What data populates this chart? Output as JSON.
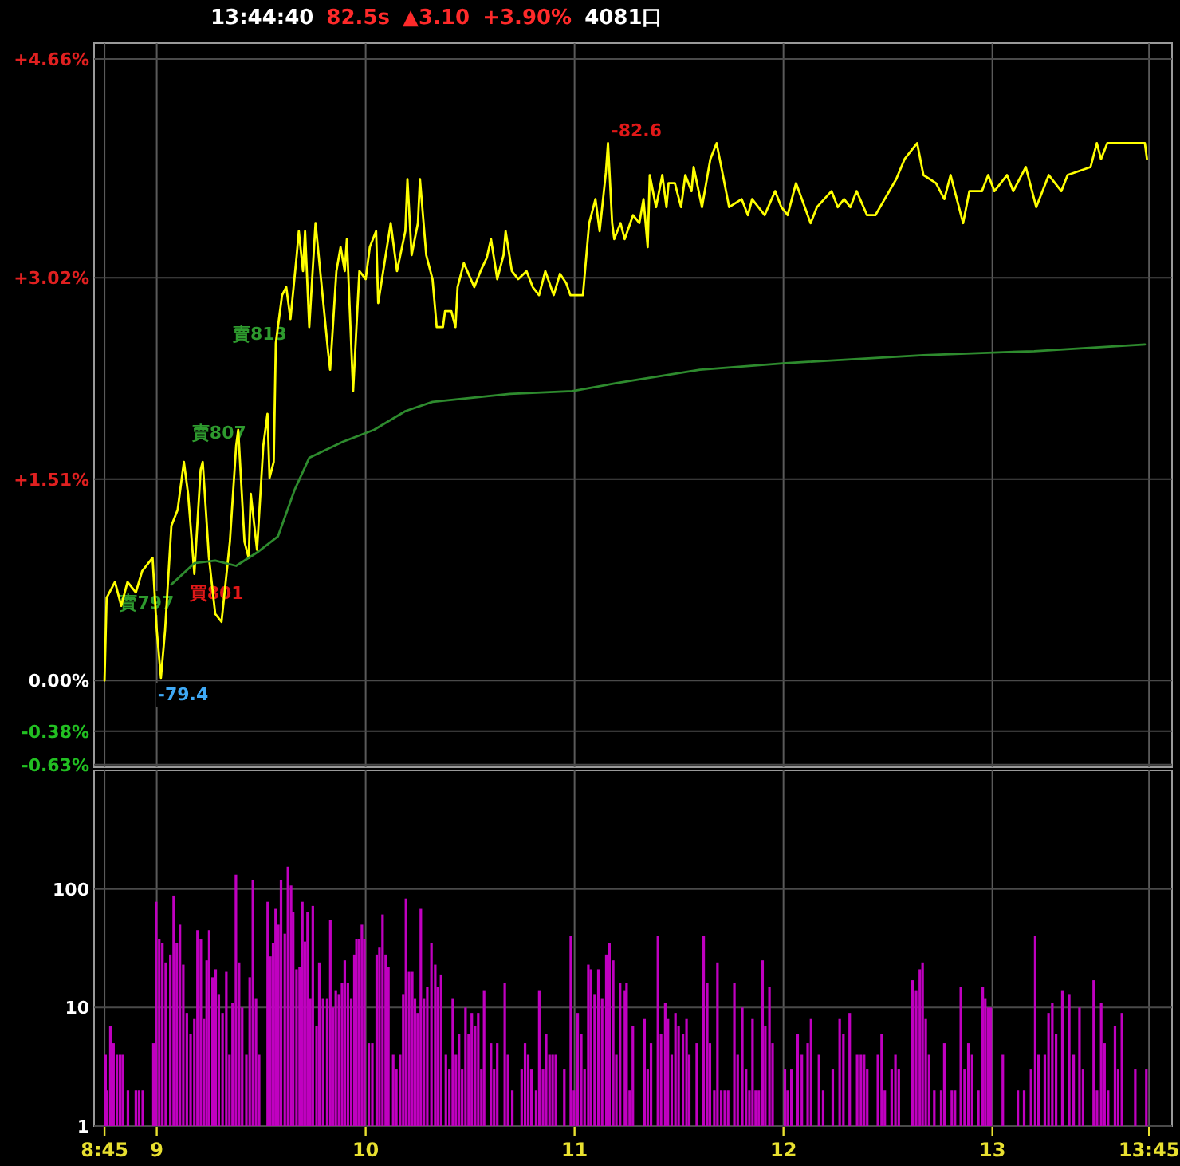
{
  "chart_data": [
    {
      "type": "line",
      "annotations": [
        "13:44:40",
        "82.5s",
        "▲3.10",
        "+3.90%",
        "4081口",
        {
          "text": "-82.6",
          "x": 11.16,
          "y": 4.03
        },
        {
          "text": "-79.4",
          "x": 9.02,
          "y": 0.02
        },
        {
          "text": "賣797",
          "x": 9.06,
          "y": 0.42
        },
        {
          "text": "賣807",
          "x": 9.39,
          "y": 1.67
        },
        {
          "text": "賣813",
          "x": 9.6,
          "y": 2.45
        },
        {
          "text": "買801",
          "x": 9.18,
          "y": 0.85
        }
      ],
      "xlim": [
        8.7,
        13.86
      ],
      "xticks": [
        {
          "value": 8.75,
          "label": null
        },
        {
          "value": 9,
          "label": null
        },
        {
          "value": 10,
          "label": null
        },
        {
          "value": 11,
          "label": null
        },
        {
          "value": 12,
          "label": null
        },
        {
          "value": 13,
          "label": null
        },
        {
          "value": 13.75,
          "label": null
        }
      ],
      "ylim": [
        -0.65,
        4.78
      ],
      "yticks": [
        {
          "value": 4.66,
          "label": "+4.66%"
        },
        {
          "value": 3.02,
          "label": "+3.02%"
        },
        {
          "value": 1.51,
          "label": "+1.51%"
        },
        {
          "value": 0,
          "label": "0.00%"
        },
        {
          "value": -0.38,
          "label": "-0.38%"
        },
        {
          "value": -0.63,
          "label": "-0.63%"
        }
      ],
      "tick_labels": "y",
      "grid": true,
      "series": [
        {
          "color": "#ffff00",
          "x": [
            8.75,
            8.76,
            8.8,
            8.83,
            8.86,
            8.9,
            8.93,
            8.98,
            9.0,
            9.02,
            9.04,
            9.07,
            9.1,
            9.13,
            9.15,
            9.18,
            9.21,
            9.22,
            9.25,
            9.28,
            9.31,
            9.35,
            9.38,
            9.39,
            9.42,
            9.44,
            9.45,
            9.48,
            9.51,
            9.53,
            9.54,
            9.56,
            9.57,
            9.6,
            9.62,
            9.64,
            9.67,
            9.68,
            9.7,
            9.71,
            9.73,
            9.76,
            9.79,
            9.82,
            9.83,
            9.86,
            9.88,
            9.9,
            9.91,
            9.94,
            9.97,
            10.0,
            10.02,
            10.05,
            10.06,
            10.09,
            10.12,
            10.15,
            10.19,
            10.2,
            10.22,
            10.25,
            10.26,
            10.29,
            10.32,
            10.34,
            10.37,
            10.38,
            10.41,
            10.43,
            10.44,
            10.47,
            10.52,
            10.55,
            10.58,
            10.6,
            10.63,
            10.66,
            10.67,
            10.7,
            10.73,
            10.77,
            10.8,
            10.83,
            10.86,
            10.9,
            10.93,
            10.96,
            10.98,
            11.04,
            11.07,
            11.1,
            11.12,
            11.15,
            11.16,
            11.18,
            11.19,
            11.22,
            11.24,
            11.28,
            11.31,
            11.33,
            11.35,
            11.36,
            11.39,
            11.42,
            11.44,
            11.45,
            11.48,
            11.51,
            11.53,
            11.56,
            11.57,
            11.61,
            11.65,
            11.68,
            11.71,
            11.74,
            11.8,
            11.83,
            11.85,
            11.91,
            11.96,
            11.99,
            12.02,
            12.06,
            12.13,
            12.16,
            12.23,
            12.26,
            12.29,
            12.32,
            12.35,
            12.4,
            12.44,
            12.54,
            12.58,
            12.64,
            12.67,
            12.73,
            12.77,
            12.8,
            12.86,
            12.89,
            12.95,
            12.98,
            13.01,
            13.07,
            13.1,
            13.16,
            13.21,
            13.27,
            13.33,
            13.36,
            13.47,
            13.5,
            13.52,
            13.55,
            13.73,
            13.74
          ],
          "values": [
            0.0,
            0.62,
            0.74,
            0.56,
            0.74,
            0.66,
            0.82,
            0.92,
            0.38,
            0.02,
            0.38,
            1.16,
            1.28,
            1.64,
            1.4,
            0.8,
            1.58,
            1.64,
            0.92,
            0.5,
            0.44,
            1.04,
            1.76,
            1.88,
            1.04,
            0.92,
            1.4,
            0.98,
            1.76,
            2.0,
            1.52,
            1.64,
            2.53,
            2.89,
            2.95,
            2.71,
            3.19,
            3.37,
            3.07,
            3.37,
            2.65,
            3.43,
            2.95,
            2.47,
            2.33,
            3.07,
            3.25,
            3.07,
            3.31,
            2.17,
            3.07,
            3.01,
            3.25,
            3.37,
            2.83,
            3.13,
            3.43,
            3.07,
            3.37,
            3.76,
            3.19,
            3.43,
            3.76,
            3.19,
            3.01,
            2.65,
            2.65,
            2.77,
            2.77,
            2.65,
            2.95,
            3.13,
            2.95,
            3.07,
            3.17,
            3.31,
            3.01,
            3.19,
            3.37,
            3.07,
            3.01,
            3.07,
            2.95,
            2.89,
            3.07,
            2.89,
            3.05,
            2.98,
            2.89,
            2.89,
            3.43,
            3.61,
            3.37,
            3.81,
            4.03,
            3.43,
            3.31,
            3.43,
            3.31,
            3.49,
            3.43,
            3.61,
            3.25,
            3.79,
            3.55,
            3.79,
            3.55,
            3.73,
            3.73,
            3.55,
            3.79,
            3.67,
            3.85,
            3.55,
            3.91,
            4.03,
            3.79,
            3.55,
            3.61,
            3.49,
            3.61,
            3.49,
            3.67,
            3.55,
            3.49,
            3.73,
            3.43,
            3.55,
            3.67,
            3.55,
            3.61,
            3.55,
            3.67,
            3.49,
            3.49,
            3.76,
            3.91,
            4.03,
            3.79,
            3.73,
            3.61,
            3.79,
            3.43,
            3.67,
            3.67,
            3.79,
            3.67,
            3.79,
            3.67,
            3.85,
            3.55,
            3.79,
            3.67,
            3.79,
            3.85,
            4.03,
            3.91,
            4.03,
            4.03,
            3.91
          ]
        },
        {
          "color": "#2e8b2e",
          "x": [
            9.07,
            9.18,
            9.28,
            9.38,
            9.48,
            9.58,
            9.66,
            9.73,
            9.89,
            10.04,
            10.19,
            10.32,
            10.69,
            10.99,
            11.2,
            11.6,
            12.01,
            12.67,
            13.2,
            13.73
          ],
          "values": [
            0.72,
            0.88,
            0.9,
            0.86,
            0.96,
            1.08,
            1.43,
            1.67,
            1.79,
            1.88,
            2.02,
            2.09,
            2.15,
            2.17,
            2.23,
            2.33,
            2.38,
            2.44,
            2.47,
            2.52
          ]
        }
      ]
    },
    {
      "type": "bar",
      "color": "#c000c0",
      "log": true,
      "ylim": [
        1,
        1000
      ],
      "yticks": [
        1,
        10,
        100
      ],
      "grid": true,
      "xlim": [
        8.7,
        13.86
      ],
      "xticks": [
        {
          "value": 8.75,
          "label": "8:45"
        },
        9,
        10,
        11,
        12,
        13,
        {
          "value": 13.75,
          "label": "13:45"
        }
      ],
      "x": [
        8.755,
        8.763,
        8.778,
        8.793,
        8.809,
        8.824,
        8.837,
        8.862,
        8.9,
        8.915,
        8.933,
        8.984,
        8.997,
        9.012,
        9.027,
        9.043,
        9.065,
        9.081,
        9.096,
        9.111,
        9.127,
        9.144,
        9.162,
        9.18,
        9.195,
        9.211,
        9.226,
        9.239,
        9.251,
        9.267,
        9.282,
        9.297,
        9.315,
        9.333,
        9.348,
        9.363,
        9.379,
        9.394,
        9.409,
        9.429,
        9.445,
        9.46,
        9.475,
        9.49,
        9.531,
        9.544,
        9.557,
        9.569,
        9.582,
        9.595,
        9.613,
        9.628,
        9.643,
        9.653,
        9.669,
        9.684,
        9.697,
        9.709,
        9.722,
        9.735,
        9.747,
        9.765,
        9.778,
        9.796,
        9.816,
        9.831,
        9.844,
        9.857,
        9.872,
        9.887,
        9.9,
        9.915,
        9.931,
        9.946,
        9.956,
        9.969,
        9.982,
        9.994,
        10.015,
        10.032,
        10.053,
        10.066,
        10.081,
        10.096,
        10.109,
        10.132,
        10.147,
        10.165,
        10.18,
        10.193,
        10.208,
        10.223,
        10.236,
        10.249,
        10.264,
        10.279,
        10.295,
        10.315,
        10.333,
        10.345,
        10.361,
        10.384,
        10.401,
        10.417,
        10.432,
        10.447,
        10.462,
        10.478,
        10.493,
        10.508,
        10.524,
        10.539,
        10.554,
        10.567,
        10.6,
        10.615,
        10.63,
        10.666,
        10.681,
        10.702,
        10.747,
        10.763,
        10.778,
        10.793,
        10.816,
        10.831,
        10.849,
        10.864,
        10.88,
        10.895,
        10.91,
        10.951,
        10.982,
        10.997,
        11.015,
        11.032,
        11.048,
        11.066,
        11.078,
        11.096,
        11.114,
        11.132,
        11.152,
        11.167,
        11.185,
        11.2,
        11.218,
        11.241,
        11.249,
        11.264,
        11.279,
        11.335,
        11.35,
        11.366,
        11.399,
        11.414,
        11.434,
        11.447,
        11.465,
        11.483,
        11.498,
        11.519,
        11.536,
        11.549,
        11.585,
        11.618,
        11.635,
        11.648,
        11.669,
        11.684,
        11.702,
        11.719,
        11.735,
        11.765,
        11.781,
        11.803,
        11.821,
        11.837,
        11.852,
        11.867,
        11.882,
        11.9,
        11.913,
        11.933,
        11.948,
        12.007,
        12.02,
        12.038,
        12.068,
        12.088,
        12.116,
        12.132,
        12.17,
        12.19,
        12.236,
        12.269,
        12.287,
        12.317,
        12.353,
        12.371,
        12.386,
        12.401,
        12.452,
        12.47,
        12.485,
        12.518,
        12.536,
        12.552,
        12.618,
        12.635,
        12.653,
        12.666,
        12.681,
        12.697,
        12.722,
        12.755,
        12.77,
        12.806,
        12.821,
        12.849,
        12.867,
        12.885,
        12.903,
        12.933,
        12.954,
        12.966,
        12.979,
        12.992,
        13.05,
        13.122,
        13.152,
        13.185,
        13.205,
        13.221,
        13.251,
        13.269,
        13.287,
        13.305,
        13.335,
        13.368,
        13.389,
        13.417,
        13.434,
        13.485,
        13.501,
        13.521,
        13.537,
        13.554,
        13.587,
        13.602,
        13.62,
        13.684,
        13.737
      ],
      "values": [
        4,
        2,
        7,
        5,
        4,
        4,
        4,
        2,
        2,
        2,
        2,
        5,
        78,
        38,
        35,
        24,
        28,
        88,
        35,
        50,
        23,
        9,
        6,
        8,
        45,
        38,
        8,
        25,
        45,
        18,
        21,
        13,
        9,
        20,
        4,
        11,
        132,
        24,
        10,
        4,
        18,
        118,
        12,
        4,
        78,
        27,
        35,
        68,
        50,
        118,
        42,
        154,
        107,
        64,
        21,
        22,
        78,
        36,
        64,
        12,
        72,
        7,
        24,
        12,
        12,
        55,
        10,
        14,
        13,
        16,
        25,
        16,
        12,
        28,
        38,
        38,
        50,
        38,
        5,
        5,
        28,
        32,
        61,
        28,
        22,
        4,
        3,
        4,
        13,
        83,
        20,
        20,
        12,
        9,
        68,
        12,
        15,
        35,
        23,
        15,
        19,
        4,
        3,
        12,
        4,
        6,
        3,
        10,
        6,
        9,
        7,
        9,
        3,
        14,
        5,
        3,
        5,
        16,
        4,
        2,
        3,
        5,
        4,
        3,
        2,
        14,
        3,
        6,
        4,
        4,
        4,
        3,
        40,
        2,
        9,
        6,
        3,
        23,
        21,
        13,
        21,
        12,
        28,
        35,
        25,
        4,
        16,
        14,
        16,
        2,
        7,
        8,
        3,
        5,
        40,
        6,
        11,
        8,
        4,
        9,
        7,
        6,
        8,
        4,
        5,
        40,
        16,
        5,
        2,
        24,
        2,
        2,
        2,
        16,
        4,
        10,
        3,
        2,
        8,
        2,
        2,
        25,
        7,
        15,
        5,
        3,
        2,
        3,
        6,
        4,
        5,
        8,
        4,
        2,
        3,
        8,
        6,
        9,
        4,
        4,
        4,
        3,
        4,
        6,
        2,
        3,
        4,
        3,
        17,
        14,
        21,
        24,
        8,
        4,
        2,
        2,
        5,
        2,
        2,
        15,
        3,
        5,
        4,
        2,
        15,
        12,
        10,
        10,
        4,
        2,
        2,
        3,
        40,
        4,
        4,
        9,
        11,
        6,
        14,
        13,
        4,
        10,
        3,
        17,
        2,
        11,
        5,
        2,
        7,
        3,
        9,
        3,
        3
      ]
    }
  ]
}
